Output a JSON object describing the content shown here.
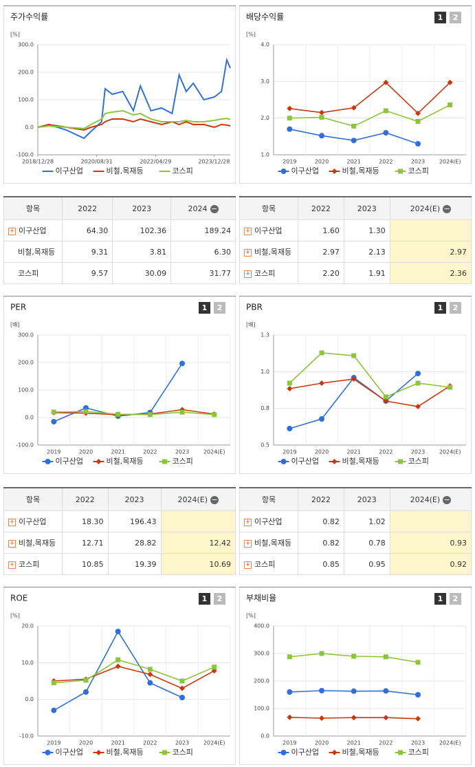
{
  "chart_data": [
    {
      "type": "timeline",
      "title": "주가수익률",
      "y_unit": "[%]",
      "x": [
        2019.0,
        2019.3,
        2019.8,
        2020.3,
        2020.5,
        2020.8,
        2020.9,
        2021.1,
        2021.4,
        2021.7,
        2021.9,
        2022.2,
        2022.5,
        2022.8,
        2023.0,
        2023.2,
        2023.4,
        2023.7,
        2024.0,
        2024.2,
        2024.35,
        2024.45
      ],
      "xlim": [
        2018.99,
        2024.45
      ],
      "xticks": [
        {
          "value": 2018.99,
          "label": "2018/12/28"
        },
        {
          "value": 2020.66,
          "label": "2020/08/31"
        },
        {
          "value": 2022.33,
          "label": "2022/04/29"
        },
        {
          "value": 2023.99,
          "label": "2023/12/28"
        }
      ],
      "ylim": [
        -100,
        300
      ],
      "yticks": [
        {
          "value": -100,
          "label": "-100.0"
        },
        {
          "value": 0,
          "label": "0.0"
        },
        {
          "value": 100,
          "label": "100.0"
        },
        {
          "value": 200,
          "label": "200.0"
        },
        {
          "value": 300,
          "label": "300.0"
        }
      ],
      "series": [
        {
          "name": "이구산업",
          "color": "#2f6fd6",
          "values": [
            0,
            10,
            -10,
            -40,
            -15,
            20,
            140,
            120,
            130,
            60,
            150,
            60,
            70,
            50,
            190,
            130,
            160,
            100,
            110,
            130,
            245,
            215
          ]
        },
        {
          "name": "비철,목재등",
          "color": "#c8380e",
          "values": [
            0,
            10,
            0,
            -10,
            0,
            10,
            20,
            30,
            30,
            20,
            30,
            20,
            10,
            20,
            10,
            20,
            10,
            10,
            0,
            10,
            8,
            5
          ]
        },
        {
          "name": "코스피",
          "color": "#8cc43c",
          "values": [
            0,
            5,
            0,
            -5,
            10,
            30,
            50,
            55,
            60,
            45,
            50,
            30,
            20,
            20,
            20,
            25,
            20,
            20,
            25,
            30,
            32,
            28
          ]
        }
      ]
    },
    {
      "type": "line",
      "title": "배당수익률",
      "y_unit": "[%]",
      "pager": [
        "1",
        "2"
      ],
      "categories": [
        "2019",
        "2020",
        "2021",
        "2022",
        "2023",
        "2024(E)"
      ],
      "ylim": [
        1,
        4
      ],
      "yticks": [
        {
          "value": 1,
          "label": "1.0"
        },
        {
          "value": 2,
          "label": "2.0"
        },
        {
          "value": 3,
          "label": "3.0"
        },
        {
          "value": 4,
          "label": "4.0"
        }
      ],
      "series": [
        {
          "name": "이구산업",
          "color": "#2f6fd6",
          "marker": "circle",
          "values": [
            1.7,
            1.52,
            1.39,
            1.6,
            1.3,
            null
          ]
        },
        {
          "name": "비철,목재등",
          "color": "#c8380e",
          "marker": "diamond",
          "values": [
            2.26,
            2.15,
            2.28,
            2.97,
            2.13,
            2.97
          ]
        },
        {
          "name": "코스피",
          "color": "#8cc43c",
          "marker": "square",
          "values": [
            2.0,
            2.02,
            1.78,
            2.2,
            1.91,
            2.36
          ]
        }
      ]
    },
    {
      "type": "line",
      "title": "PER",
      "y_unit": "[배]",
      "pager": [
        "1",
        "2"
      ],
      "categories": [
        "2019",
        "2020",
        "2021",
        "2022",
        "2023",
        "2024(E)"
      ],
      "ylim": [
        -100,
        300
      ],
      "yticks": [
        {
          "value": -100,
          "label": "-100.0"
        },
        {
          "value": 0,
          "label": "0.0"
        },
        {
          "value": 100,
          "label": "100.0"
        },
        {
          "value": 200,
          "label": "200.0"
        },
        {
          "value": 300,
          "label": "300.0"
        }
      ],
      "series": [
        {
          "name": "이구산업",
          "color": "#2f6fd6",
          "marker": "circle",
          "values": [
            -15,
            35,
            5,
            18.3,
            196.43,
            null
          ]
        },
        {
          "name": "비철,목재등",
          "color": "#c8380e",
          "marker": "diamond",
          "values": [
            18,
            16,
            10,
            12.71,
            28.82,
            12.42
          ]
        },
        {
          "name": "코스피",
          "color": "#8cc43c",
          "marker": "square",
          "values": [
            20,
            22,
            12,
            10.85,
            19.39,
            10.69
          ]
        }
      ]
    },
    {
      "type": "line",
      "title": "PBR",
      "y_unit": "[배]",
      "pager": [
        "1",
        "2"
      ],
      "categories": [
        "2019",
        "2020",
        "2021",
        "2022",
        "2023",
        "2024(E)"
      ],
      "ylim": [
        0.5,
        1.3
      ],
      "yticks": [
        {
          "value": 0.5,
          "label": "0.5"
        },
        {
          "value": 0.7667,
          "label": "0.8"
        },
        {
          "value": 1.0333,
          "label": "1.0"
        },
        {
          "value": 1.3,
          "label": "1.3"
        }
      ],
      "series": [
        {
          "name": "이구산업",
          "color": "#2f6fd6",
          "marker": "circle",
          "values": [
            0.62,
            0.69,
            0.99,
            0.82,
            1.02,
            null
          ]
        },
        {
          "name": "비철,목재등",
          "color": "#c8380e",
          "marker": "diamond",
          "values": [
            0.91,
            0.95,
            0.98,
            0.82,
            0.78,
            0.93
          ]
        },
        {
          "name": "코스피",
          "color": "#8cc43c",
          "marker": "square",
          "values": [
            0.95,
            1.17,
            1.15,
            0.85,
            0.95,
            0.92
          ]
        }
      ]
    },
    {
      "type": "line",
      "title": "ROE",
      "y_unit": "[%]",
      "pager": [
        "1",
        "2"
      ],
      "categories": [
        "2019",
        "2020",
        "2021",
        "2022",
        "2023",
        "2024(E)"
      ],
      "ylim": [
        -10,
        20
      ],
      "yticks": [
        {
          "value": -10,
          "label": "-10.0"
        },
        {
          "value": 0,
          "label": "0.0"
        },
        {
          "value": 10,
          "label": "10.0"
        },
        {
          "value": 20,
          "label": "20.0"
        }
      ],
      "series": [
        {
          "name": "이구산업",
          "color": "#2f6fd6",
          "marker": "circle",
          "values": [
            -3,
            2,
            18.5,
            4.5,
            0.5,
            null
          ]
        },
        {
          "name": "비철,목재등",
          "color": "#c8380e",
          "marker": "diamond",
          "values": [
            5,
            5.5,
            9,
            6.8,
            3,
            7.8
          ]
        },
        {
          "name": "코스피",
          "color": "#8cc43c",
          "marker": "square",
          "values": [
            4.5,
            5.2,
            10.8,
            8.2,
            5,
            8.8
          ]
        }
      ]
    },
    {
      "type": "line",
      "title": "부채비율",
      "y_unit": "[%]",
      "pager": [
        "1",
        "2"
      ],
      "categories": [
        "2019",
        "2020",
        "2021",
        "2022",
        "2023",
        "2024(E)"
      ],
      "ylim": [
        0,
        400
      ],
      "yticks": [
        {
          "value": 0,
          "label": "0.0"
        },
        {
          "value": 100,
          "label": "100.0"
        },
        {
          "value": 200,
          "label": "200.0"
        },
        {
          "value": 300,
          "label": "300.0"
        },
        {
          "value": 400,
          "label": "400.0"
        }
      ],
      "series": [
        {
          "name": "이구산업",
          "color": "#2f6fd6",
          "marker": "circle",
          "values": [
            160,
            165,
            163,
            164,
            150,
            null
          ]
        },
        {
          "name": "비철,목재등",
          "color": "#c8380e",
          "marker": "diamond",
          "values": [
            68,
            65,
            67,
            67,
            63,
            null
          ]
        },
        {
          "name": "코스피",
          "color": "#8cc43c",
          "marker": "square",
          "values": [
            288,
            300,
            290,
            288,
            268,
            null
          ]
        }
      ]
    }
  ],
  "tables": [
    {
      "columns": [
        "항목",
        "2022",
        "2023",
        "2024"
      ],
      "highlight_last": false,
      "expandable": [
        true,
        false,
        false
      ],
      "rows": [
        [
          "이구산업",
          "64.30",
          "102.36",
          "189.24"
        ],
        [
          "비철,목재등",
          "9.31",
          "3.81",
          "6.30"
        ],
        [
          "코스피",
          "9.57",
          "30.09",
          "31.77"
        ]
      ]
    },
    {
      "columns": [
        "항목",
        "2022",
        "2023",
        "2024(E)"
      ],
      "highlight_last": true,
      "expandable": [
        true,
        true,
        true
      ],
      "rows": [
        [
          "이구산업",
          "1.60",
          "1.30",
          null
        ],
        [
          "비철,목재등",
          "2.97",
          "2.13",
          "2.97"
        ],
        [
          "코스피",
          "2.20",
          "1.91",
          "2.36"
        ]
      ]
    },
    {
      "columns": [
        "항목",
        "2022",
        "2023",
        "2024(E)"
      ],
      "highlight_last": true,
      "expandable": [
        true,
        true,
        true
      ],
      "rows": [
        [
          "이구산업",
          "18.30",
          "196.43",
          null
        ],
        [
          "비철,목재등",
          "12.71",
          "28.82",
          "12.42"
        ],
        [
          "코스피",
          "10.85",
          "19.39",
          "10.69"
        ]
      ]
    },
    {
      "columns": [
        "항목",
        "2022",
        "2023",
        "2024(E)"
      ],
      "highlight_last": true,
      "expandable": [
        true,
        true,
        true
      ],
      "rows": [
        [
          "이구산업",
          "0.82",
          "1.02",
          null
        ],
        [
          "비철,목재등",
          "0.82",
          "0.78",
          "0.93"
        ],
        [
          "코스피",
          "0.85",
          "0.95",
          "0.92"
        ]
      ]
    }
  ]
}
